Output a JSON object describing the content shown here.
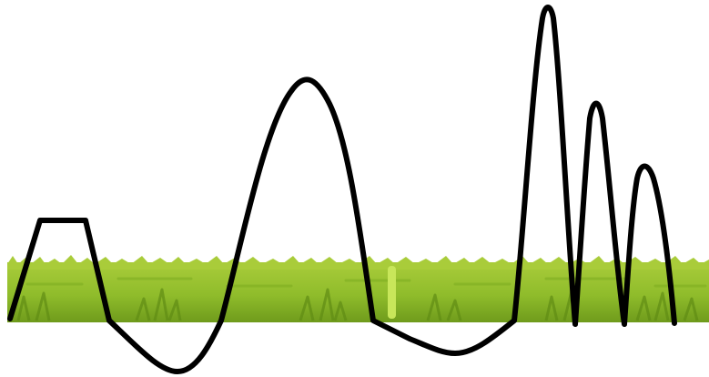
{
  "colors": {
    "background": "#ffffff",
    "ground_top": "#a9cc3a",
    "ground_mid": "#8fbc2b",
    "ground_bottom": "#6f9b1c",
    "grass_blade": "#7fae22",
    "grass_blade_dark": "#5f8c14",
    "sprout": "#c8e65a",
    "track_line": "#000000"
  },
  "icons": {
    "ground": "grass-strip",
    "track": "terrain-curve-line",
    "sprout": "grass-sprout"
  }
}
